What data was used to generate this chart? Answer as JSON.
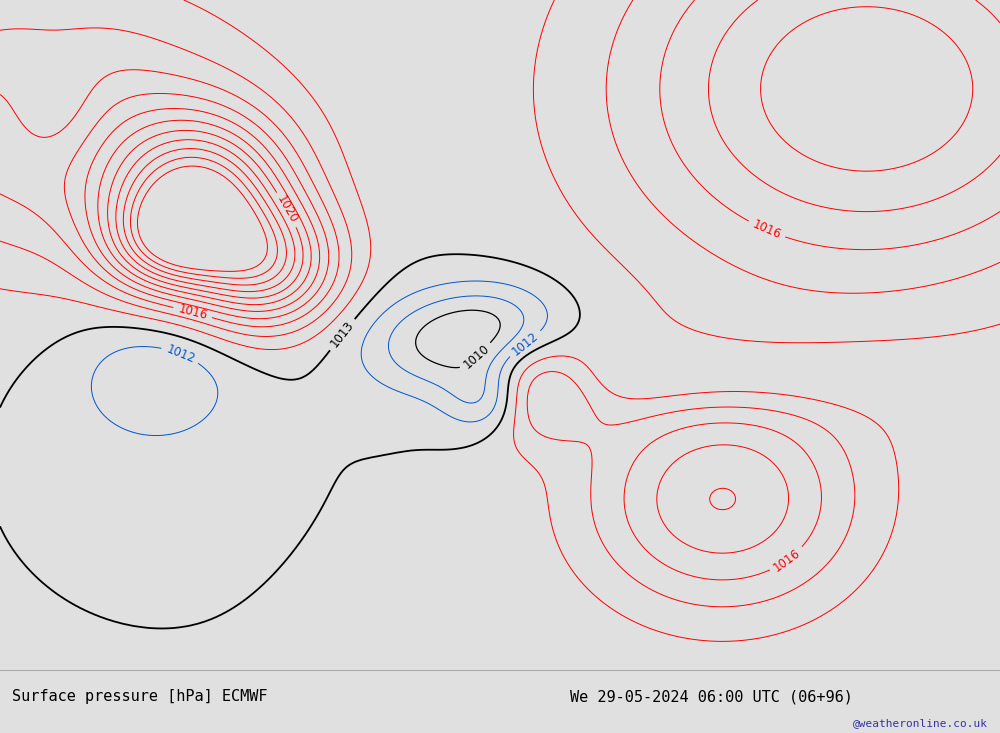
{
  "title_left": "Surface pressure [hPa] ECMWF",
  "title_right": "We 29-05-2024 06:00 UTC (06+96)",
  "watermark": "@weatheronline.co.uk",
  "fig_width": 10.0,
  "fig_height": 7.33,
  "dpi": 100,
  "ocean_color": "#e0e0e0",
  "land_color_light": "#c8f0a0",
  "land_color_lighter": "#d8f8b0",
  "bottom_bar_color": "#d4d4d4",
  "contour_black": "#000000",
  "contour_red": "#ff0000",
  "contour_blue": "#0055cc",
  "contour_gray": "#888888",
  "label_fontsize": 8.5,
  "title_fontsize": 11,
  "watermark_color": "#3333aa",
  "lon_min": -120,
  "lon_max": -30,
  "lat_min": -20,
  "lat_max": 40
}
